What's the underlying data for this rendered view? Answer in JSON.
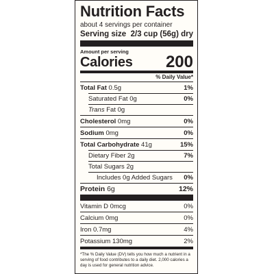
{
  "label": {
    "title": "Nutrition Facts",
    "servings_per_container": "about 4 servings per container",
    "serving_size_label": "Serving size",
    "serving_size_value": "2/3 cup (56g) dry",
    "amount_per_serving": "Amount per serving",
    "calories_label": "Calories",
    "calories_value": "200",
    "daily_value_header": "% Daily Value*",
    "nutrients": [
      {
        "name": "Total Fat",
        "amount": "0.5g",
        "dv": "1%"
      },
      {
        "name": "Saturated Fat",
        "amount": "0g",
        "dv": "0%"
      },
      {
        "name": "Trans",
        "amount": "Fat 0g",
        "dv": ""
      },
      {
        "name": "Cholesterol",
        "amount": "0mg",
        "dv": "0%"
      },
      {
        "name": "Sodium",
        "amount": "0mg",
        "dv": "0%"
      },
      {
        "name": "Total Carbohydrate",
        "amount": "41g",
        "dv": "15%"
      },
      {
        "name": "Dietary Fiber",
        "amount": "2g",
        "dv": "7%"
      },
      {
        "name": "Total Sugars",
        "amount": "2g",
        "dv": ""
      },
      {
        "name": "Includes",
        "amount": "0g Added Sugars",
        "dv": "0%"
      },
      {
        "name": "Protein",
        "amount": "6g",
        "dv": "12%"
      }
    ],
    "vitamins": [
      {
        "name": "Vitamin D",
        "amount": "0mcg",
        "dv": "0%"
      },
      {
        "name": "Calcium",
        "amount": "0mg",
        "dv": "0%"
      },
      {
        "name": "Iron",
        "amount": "0.7mg",
        "dv": "4%"
      },
      {
        "name": "Potassium",
        "amount": "130mg",
        "dv": "2%"
      }
    ],
    "footnote": "*The % Daily Value (DV) tells you how much a nutrient in a serving of food contributes to a daily diet. 2,000 calories a day is used for general nutrition advice."
  }
}
